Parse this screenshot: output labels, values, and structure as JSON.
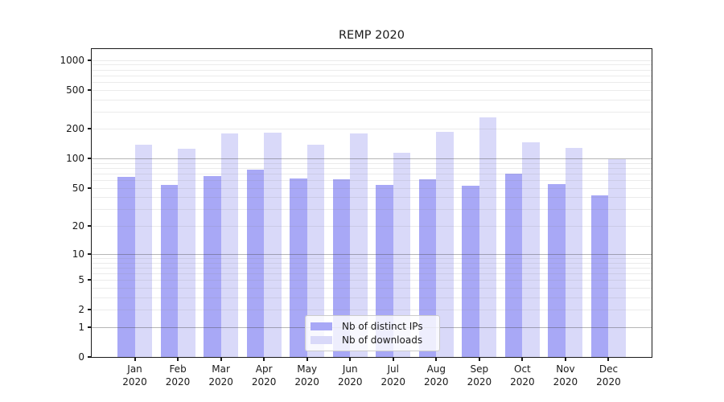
{
  "chart_data": {
    "type": "bar",
    "title": "REMP 2020",
    "categories": [
      {
        "month": "Jan",
        "year": "2020"
      },
      {
        "month": "Feb",
        "year": "2020"
      },
      {
        "month": "Mar",
        "year": "2020"
      },
      {
        "month": "Apr",
        "year": "2020"
      },
      {
        "month": "May",
        "year": "2020"
      },
      {
        "month": "Jun",
        "year": "2020"
      },
      {
        "month": "Jul",
        "year": "2020"
      },
      {
        "month": "Aug",
        "year": "2020"
      },
      {
        "month": "Sep",
        "year": "2020"
      },
      {
        "month": "Oct",
        "year": "2020"
      },
      {
        "month": "Nov",
        "year": "2020"
      },
      {
        "month": "Dec",
        "year": "2020"
      }
    ],
    "series": [
      {
        "id": "distinct-ips",
        "name": "Nb of distinct IPs",
        "color": "#a8a8f6",
        "values": [
          65,
          54,
          66,
          77,
          63,
          61,
          54,
          61,
          53,
          70,
          55,
          42
        ]
      },
      {
        "id": "downloads",
        "name": "Nb of downloads",
        "color": "#d9d9f9",
        "values": [
          138,
          125,
          179,
          184,
          138,
          180,
          114,
          187,
          260,
          147,
          129,
          98
        ]
      }
    ],
    "yscale": "log1p",
    "yticks": [
      0,
      1,
      2,
      5,
      10,
      20,
      50,
      100,
      200,
      500,
      1000
    ],
    "major_gridlines": [
      1,
      10,
      100
    ],
    "minor_gridline_decades": [
      1,
      10,
      100
    ],
    "extra_minor_gridlines": [
      1000
    ],
    "ylim": [
      0,
      1290
    ],
    "xlabel": "",
    "ylabel": "",
    "grid": true,
    "legend_position": "lower center"
  }
}
